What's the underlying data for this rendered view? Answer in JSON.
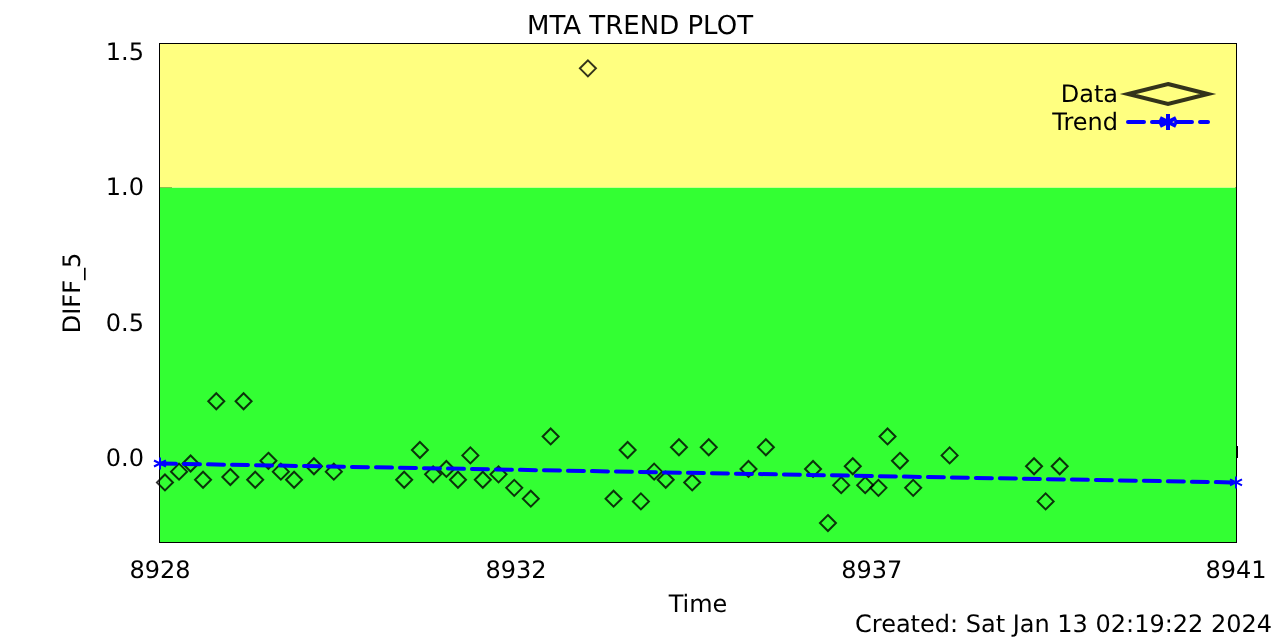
{
  "chart_data": {
    "type": "scatter",
    "title": "MTA TREND PLOT",
    "xlabel": "Time",
    "ylabel": "DIFF_5",
    "annotations": [
      "Created: Sat Jan 13 02:19:22 2024"
    ],
    "xlim": [
      8928,
      8941
    ],
    "xticks": [
      8928,
      {
        "value": 8932.3,
        "label": "8932"
      },
      {
        "value": 8936.6,
        "label": "8937"
      },
      8941
    ],
    "ylim": [
      -0.31,
      1.53
    ],
    "yticks": [
      {
        "value": 0,
        "label": "0.0"
      },
      {
        "value": 0.5,
        "label": "0.5"
      },
      {
        "value": 1,
        "label": "1.0"
      },
      {
        "value": 1.5,
        "label": "1.5"
      }
    ],
    "grid": false,
    "legend": "top right",
    "bands": [
      {
        "axis": "y",
        "from": -0.31,
        "to": 1.0,
        "color": "#33ff33"
      },
      {
        "axis": "y",
        "from": 1.0,
        "to": 1.53,
        "color": "#ffff80"
      }
    ],
    "series": [
      {
        "name": "Data",
        "marker": "diamond",
        "color": "#000000",
        "x": [
          8928.06,
          8928.23,
          8928.37,
          8928.52,
          8928.68,
          8928.85,
          8929.01,
          8929.15,
          8929.31,
          8929.46,
          8929.62,
          8929.86,
          8930.1,
          8930.95,
          8931.14,
          8931.3,
          8931.46,
          8931.6,
          8931.75,
          8931.9,
          8932.09,
          8932.28,
          8932.48,
          8932.72,
          8933.17,
          8933.48,
          8933.65,
          8933.81,
          8933.97,
          8934.11,
          8934.27,
          8934.43,
          8934.63,
          8935.11,
          8935.32,
          8935.89,
          8936.07,
          8936.23,
          8936.37,
          8936.52,
          8936.68,
          8936.79,
          8936.94,
          8937.1,
          8937.54,
          8938.56,
          8938.7,
          8938.87
        ],
        "values": [
          -0.09,
          -0.05,
          -0.02,
          -0.08,
          0.21,
          -0.07,
          0.21,
          -0.08,
          -0.01,
          -0.05,
          -0.08,
          -0.03,
          -0.05,
          -0.08,
          0.03,
          -0.06,
          -0.04,
          -0.08,
          0.01,
          -0.08,
          -0.06,
          -0.11,
          -0.15,
          0.08,
          1.44,
          -0.15,
          0.03,
          -0.16,
          -0.05,
          -0.08,
          0.04,
          -0.09,
          0.04,
          -0.04,
          0.04,
          -0.04,
          -0.24,
          -0.1,
          -0.03,
          -0.1,
          -0.11,
          0.08,
          -0.01,
          -0.11,
          0.01,
          -0.03,
          -0.16,
          -0.03
        ]
      },
      {
        "name": "Trend",
        "type": "line",
        "marker": "cross",
        "line_style": "dashed",
        "color": "#0000ff",
        "x": [
          8928,
          8941
        ],
        "values": [
          -0.02,
          -0.09
        ]
      }
    ]
  }
}
